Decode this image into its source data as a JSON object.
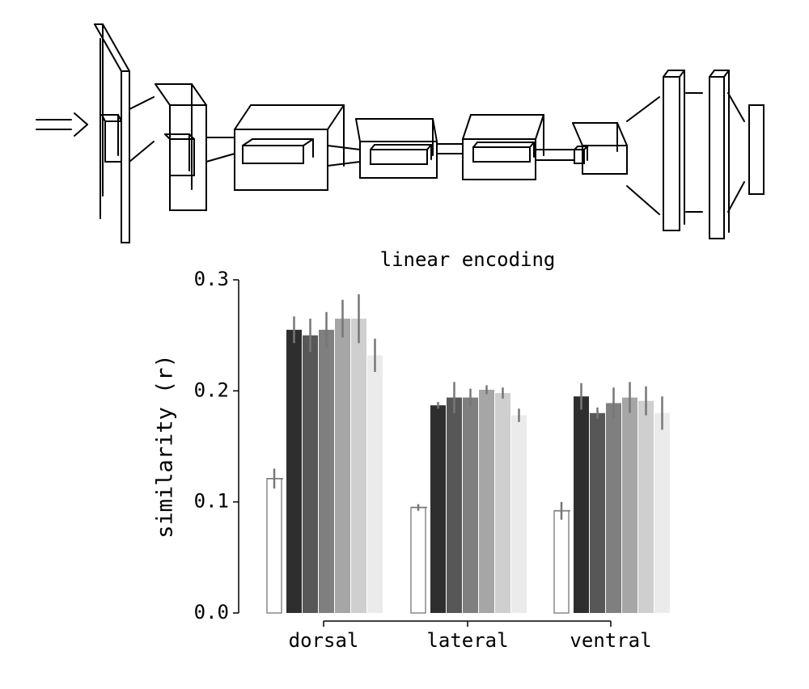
{
  "chart_data": {
    "type": "bar",
    "title": "linear encoding",
    "ylabel": "similarity (r)",
    "categories": [
      "dorsal",
      "lateral",
      "ventral"
    ],
    "series": [
      {
        "color": "#ffffff",
        "values": [
          0.121,
          0.095,
          0.092
        ],
        "errors": [
          0.009,
          0.003,
          0.008
        ]
      },
      {
        "color": "#2e2e2e",
        "values": [
          0.255,
          0.187,
          0.195
        ],
        "errors": [
          0.012,
          0.003,
          0.012
        ]
      },
      {
        "color": "#575757",
        "values": [
          0.25,
          0.194,
          0.18
        ],
        "errors": [
          0.015,
          0.014,
          0.005
        ]
      },
      {
        "color": "#7f7f7f",
        "values": [
          0.255,
          0.194,
          0.189
        ],
        "errors": [
          0.016,
          0.008,
          0.014
        ]
      },
      {
        "color": "#a6a6a6",
        "values": [
          0.265,
          0.201,
          0.194
        ],
        "errors": [
          0.017,
          0.004,
          0.014
        ]
      },
      {
        "color": "#cfcfcf",
        "values": [
          0.265,
          0.198,
          0.191
        ],
        "errors": [
          0.022,
          0.005,
          0.013
        ]
      },
      {
        "color": "#ebebeb",
        "values": [
          0.232,
          0.178,
          0.18
        ],
        "errors": [
          0.015,
          0.006,
          0.015
        ]
      }
    ],
    "ylim": [
      0,
      0.3
    ],
    "yticks": [
      {
        "value": 0,
        "label": "0.0"
      },
      0.1,
      0.2,
      0.3
    ]
  }
}
